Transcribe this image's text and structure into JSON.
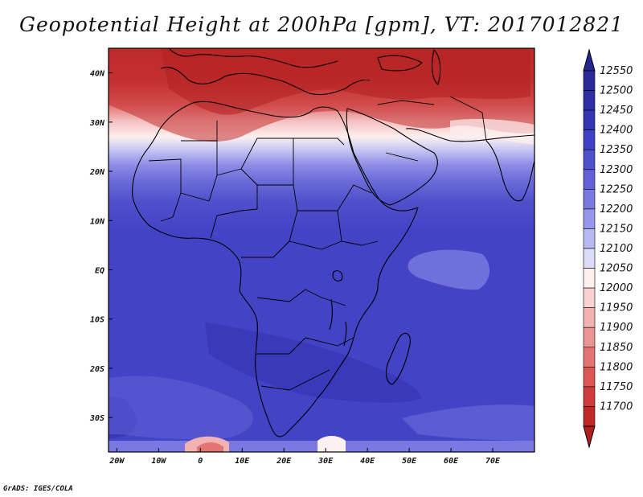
{
  "title": "Geopotential Height at 200hPa [gpm], VT: 2017012821",
  "credit": "GrADS: IGES/COLA",
  "map": {
    "lon_range": [
      -22,
      80
    ],
    "lat_range": [
      -37,
      45
    ],
    "x_ticks": [
      {
        "lon": -20,
        "label": "20W"
      },
      {
        "lon": -10,
        "label": "10W"
      },
      {
        "lon": 0,
        "label": "0"
      },
      {
        "lon": 10,
        "label": "10E"
      },
      {
        "lon": 20,
        "label": "20E"
      },
      {
        "lon": 30,
        "label": "30E"
      },
      {
        "lon": 40,
        "label": "40E"
      },
      {
        "lon": 50,
        "label": "50E"
      },
      {
        "lon": 60,
        "label": "60E"
      },
      {
        "lon": 70,
        "label": "70E"
      }
    ],
    "y_ticks": [
      {
        "lat": 40,
        "label": "40N"
      },
      {
        "lat": 30,
        "label": "30N"
      },
      {
        "lat": 20,
        "label": "20N"
      },
      {
        "lat": 10,
        "label": "10N"
      },
      {
        "lat": 0,
        "label": "EQ"
      },
      {
        "lat": -10,
        "label": "10S"
      },
      {
        "lat": -20,
        "label": "20S"
      },
      {
        "lat": -30,
        "label": "30S"
      }
    ]
  },
  "colorbar": {
    "levels": [
      {
        "label": "12550",
        "color": "#2a2a98"
      },
      {
        "label": "12500",
        "color": "#2e2ea6"
      },
      {
        "label": "12450",
        "color": "#3535b4"
      },
      {
        "label": "12400",
        "color": "#4040c4"
      },
      {
        "label": "12350",
        "color": "#5050cc"
      },
      {
        "label": "12300",
        "color": "#6262d6"
      },
      {
        "label": "12250",
        "color": "#7878e0"
      },
      {
        "label": "12200",
        "color": "#9696ea"
      },
      {
        "label": "12150",
        "color": "#b8b8f2"
      },
      {
        "label": "12100",
        "color": "#dcdcf8"
      },
      {
        "label": "12050",
        "color": "#fdf0f0"
      },
      {
        "label": "12000",
        "color": "#f8d2d2"
      },
      {
        "label": "11950",
        "color": "#f2b2b2"
      },
      {
        "label": "11900",
        "color": "#ec9494"
      },
      {
        "label": "11850",
        "color": "#e47474"
      },
      {
        "label": "11800",
        "color": "#dc5656"
      },
      {
        "label": "11750",
        "color": "#d03c3c"
      },
      {
        "label": "11700",
        "color": "#c02828"
      }
    ],
    "top_arrow_color": "#262690",
    "bottom_arrow_color": "#b01e1e"
  }
}
